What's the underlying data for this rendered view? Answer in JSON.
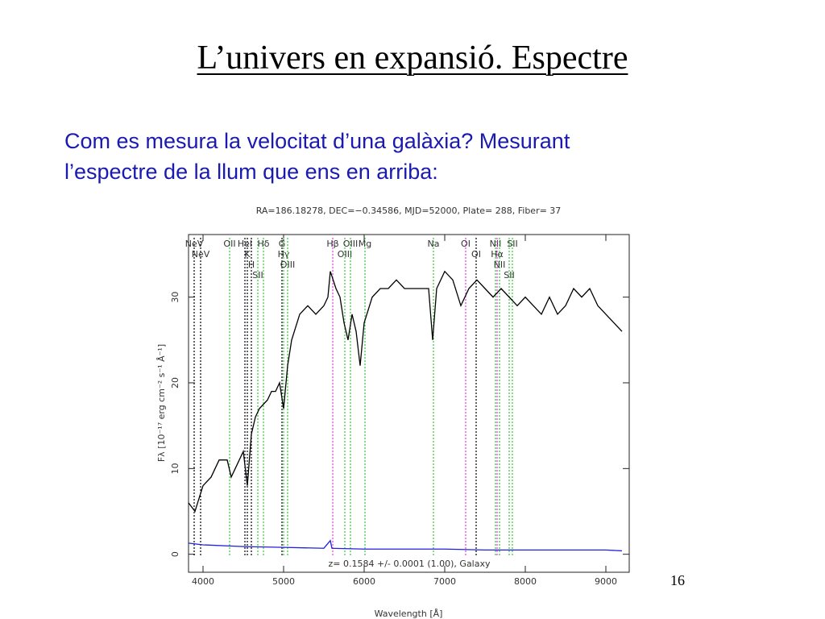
{
  "slide": {
    "title": "L’univers en expansió. Espectre",
    "body": [
      "Com es mesura la velocitat d’una galàxia? Mesurant",
      "l’espectre de la llum que ens en arriba:"
    ],
    "page_number": "16"
  },
  "chart_data": {
    "type": "line",
    "title": "RA=186.18278, DEC=−0.34586, MJD=52000, Plate= 288, Fiber= 37",
    "subtitle": "z= 0.1584 +/- 0.0001 (1.00), Galaxy",
    "x_label": "Wavelength [Å]",
    "y_label": "Fλ [10⁻¹⁷ erg cm⁻² s⁻¹ Å⁻¹]",
    "xlim": [
      3820,
      9290
    ],
    "ylim": [
      -2.1,
      37.3
    ],
    "xticks": [
      4000,
      5000,
      6000,
      7000,
      8000,
      9000
    ],
    "yticks": [
      0,
      10,
      20,
      30
    ],
    "series": [
      {
        "color": "#000000",
        "x": [
          3820,
          3900,
          4000,
          4100,
          4200,
          4300,
          4350,
          4400,
          4500,
          4550,
          4600,
          4650,
          4700,
          4800,
          4850,
          4900,
          4950,
          5000,
          5050,
          5100,
          5200,
          5300,
          5400,
          5500,
          5550,
          5580,
          5650,
          5700,
          5750,
          5800,
          5850,
          5900,
          5950,
          6000,
          6100,
          6200,
          6300,
          6400,
          6500,
          6600,
          6700,
          6800,
          6850,
          6900,
          7000,
          7100,
          7200,
          7250,
          7300,
          7400,
          7500,
          7600,
          7700,
          7800,
          7900,
          8000,
          8100,
          8200,
          8300,
          8400,
          8500,
          8600,
          8700,
          8800,
          8900,
          9000,
          9100,
          9200
        ],
        "values": [
          6,
          5,
          8,
          9,
          11,
          11,
          9,
          10,
          12,
          8,
          14,
          16,
          17,
          18,
          19,
          19,
          20,
          17,
          22,
          25,
          28,
          29,
          28,
          29,
          30,
          33,
          31,
          30,
          27,
          25,
          28,
          26,
          22,
          27,
          30,
          31,
          31,
          32,
          31,
          31,
          31,
          31,
          25,
          31,
          33,
          32,
          29,
          30,
          31,
          32,
          31,
          30,
          31,
          30,
          29,
          30,
          29,
          28,
          30,
          28,
          29,
          31,
          30,
          31,
          29,
          28,
          27,
          26
        ]
      },
      {
        "color": "#2020e0",
        "x": [
          3820,
          4000,
          4500,
          5000,
          5500,
          5580,
          5600,
          6000,
          6500,
          7000,
          7500,
          8000,
          8500,
          9000,
          9200
        ],
        "values": [
          1.3,
          1.1,
          0.9,
          0.8,
          0.7,
          1.6,
          0.7,
          0.6,
          0.6,
          0.6,
          0.5,
          0.5,
          0.5,
          0.5,
          0.4
        ]
      }
    ],
    "annotations": [
      {
        "label": "NeV",
        "x": 3890,
        "color": "#000000"
      },
      {
        "label": "NeV",
        "x": 3970,
        "color": "#000000"
      },
      {
        "label": "OII",
        "x": 4330,
        "color": "#33cc33"
      },
      {
        "label": "HeI",
        "x": 4520,
        "color": "#000000"
      },
      {
        "label": "K",
        "x": 4550,
        "color": "#000000"
      },
      {
        "label": "H",
        "x": 4600,
        "color": "#000000"
      },
      {
        "label": "SII",
        "x": 4680,
        "color": "#33cc33"
      },
      {
        "label": "Hδ",
        "x": 4750,
        "color": "#33cc33"
      },
      {
        "label": "G",
        "x": 4980,
        "color": "#000000"
      },
      {
        "label": "Hγ",
        "x": 5000,
        "color": "#33cc33"
      },
      {
        "label": "OIII",
        "x": 5050,
        "color": "#33cc33"
      },
      {
        "label": "Hβ",
        "x": 5610,
        "color": "#ee33ee"
      },
      {
        "label": "OIII",
        "x": 5760,
        "color": "#33cc33"
      },
      {
        "label": "OIII",
        "x": 5830,
        "color": "#33cc33"
      },
      {
        "label": "Mg",
        "x": 6010,
        "color": "#33cc33"
      },
      {
        "label": "Na",
        "x": 6860,
        "color": "#33cc33"
      },
      {
        "label": "OI",
        "x": 7260,
        "color": "#ee33ee"
      },
      {
        "label": "OI",
        "x": 7390,
        "color": "#000000"
      },
      {
        "label": "NII",
        "x": 7630,
        "color": "#33cc33"
      },
      {
        "label": "Hα",
        "x": 7650,
        "color": "#ee33ee"
      },
      {
        "label": "NII",
        "x": 7680,
        "color": "#33cc33"
      },
      {
        "label": "SII",
        "x": 7800,
        "color": "#33cc33"
      },
      {
        "label": "SII",
        "x": 7840,
        "color": "#33cc33"
      }
    ]
  }
}
